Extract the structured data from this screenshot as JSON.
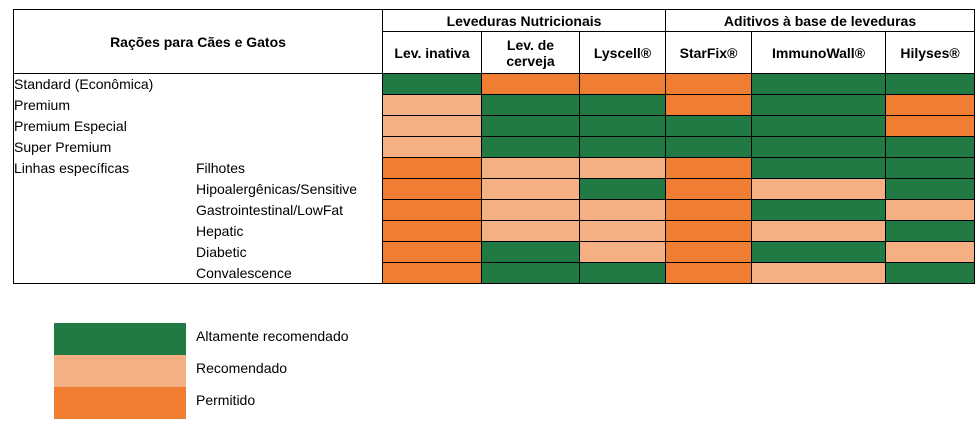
{
  "colors": {
    "highly": "#217a44",
    "recommended": "#f4b083",
    "permitted": "#ef7d32"
  },
  "header": {
    "title": "Rações para Cães e Gatos",
    "group1": "Leveduras Nutricionais",
    "group2": "Aditivos à base de leveduras",
    "columns": [
      "Lev. inativa",
      "Lev. de cerveja",
      "Lyscell®",
      "StarFix®",
      "ImmunoWall®",
      "Hilyses®"
    ]
  },
  "rows": [
    {
      "name": "Standard (Econômica)",
      "sub": "",
      "levels": [
        "H",
        "P",
        "P",
        "P",
        "H",
        "H"
      ]
    },
    {
      "name": "Premium",
      "sub": "",
      "levels": [
        "R",
        "H",
        "H",
        "P",
        "H",
        "P"
      ]
    },
    {
      "name": "Premium Especial",
      "sub": "",
      "levels": [
        "R",
        "H",
        "H",
        "H",
        "H",
        "P"
      ]
    },
    {
      "name": "Super Premium",
      "sub": "",
      "levels": [
        "R",
        "H",
        "H",
        "H",
        "H",
        "H"
      ]
    },
    {
      "name": "Linhas específicas",
      "sub": "Filhotes",
      "levels": [
        "P",
        "R",
        "R",
        "P",
        "H",
        "H"
      ]
    },
    {
      "name": "",
      "sub": "Hipoalergênicas/Sensitive",
      "levels": [
        "P",
        "R",
        "H",
        "P",
        "R",
        "H"
      ]
    },
    {
      "name": "",
      "sub": "Gastrointestinal/LowFat",
      "levels": [
        "P",
        "R",
        "R",
        "P",
        "H",
        "R"
      ]
    },
    {
      "name": "",
      "sub": "Hepatic",
      "levels": [
        "P",
        "R",
        "R",
        "P",
        "R",
        "H"
      ]
    },
    {
      "name": "",
      "sub": "Diabetic",
      "levels": [
        "P",
        "H",
        "R",
        "P",
        "H",
        "R"
      ]
    },
    {
      "name": "",
      "sub": "Convalescence",
      "levels": [
        "P",
        "H",
        "H",
        "P",
        "R",
        "H"
      ]
    }
  ],
  "legend": [
    {
      "level": "H",
      "label": "Altamente recomendado"
    },
    {
      "level": "R",
      "label": "Recomendado"
    },
    {
      "level": "P",
      "label": "Permitido"
    }
  ]
}
